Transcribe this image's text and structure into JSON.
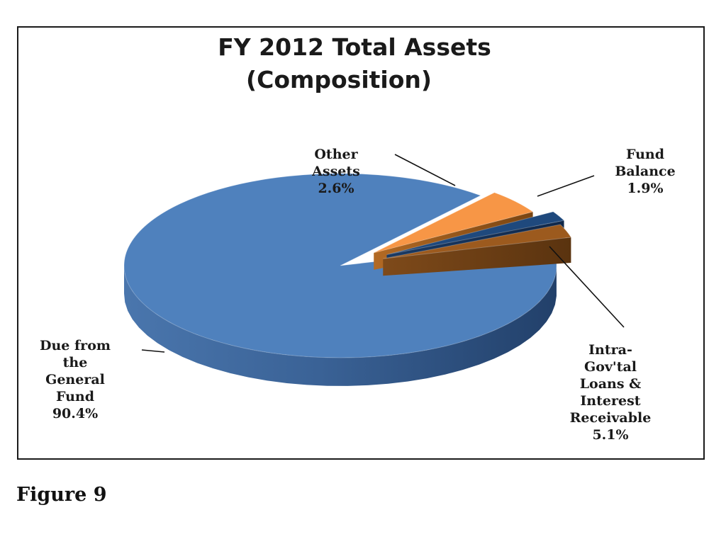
{
  "chart_data": {
    "type": "pie",
    "title": [
      "FY 2012 Total Assets",
      "(Composition)"
    ],
    "slices": [
      {
        "label": [
          "Due from",
          "the",
          "General",
          "Fund"
        ],
        "value_text": "90.4%",
        "value": 90.4,
        "color": "#4f81bd"
      },
      {
        "label": [
          "Intra-",
          "Gov'tal",
          "Loans &",
          "Interest",
          "Receivable"
        ],
        "value_text": "5.1%",
        "value": 5.1,
        "color": "#f79646"
      },
      {
        "label": [
          "Fund",
          "Balance"
        ],
        "value_text": "1.9%",
        "value": 1.9,
        "color": "#1f497d"
      },
      {
        "label": [
          "Other",
          "Assets"
        ],
        "value_text": "2.6%",
        "value": 2.6,
        "color": "#9c5a1e"
      }
    ],
    "style": "3d-exploded"
  },
  "caption": "Figure 9"
}
